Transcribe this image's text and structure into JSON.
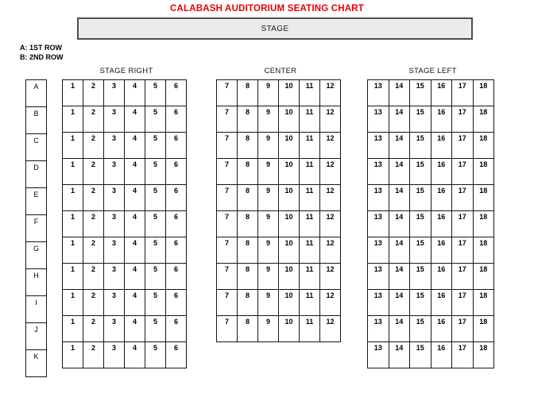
{
  "title": "CALABASH AUDITORIUM SEATING CHART",
  "stage_label": "STAGE",
  "legend": {
    "line1": "A: 1ST ROW",
    "line2": "B: 2ND ROW"
  },
  "row_labels": [
    "A",
    "B",
    "C",
    "D",
    "E",
    "F",
    "G",
    "H",
    "I",
    "J",
    "K"
  ],
  "sections": [
    {
      "id": "stage-right",
      "name": "STAGE RIGHT",
      "seat_numbers": [
        "1",
        "2",
        "3",
        "4",
        "5",
        "6"
      ],
      "rows": [
        "A",
        "B",
        "C",
        "D",
        "E",
        "F",
        "G",
        "H",
        "I",
        "J",
        "K"
      ]
    },
    {
      "id": "center",
      "name": "CENTER",
      "seat_numbers": [
        "7",
        "8",
        "9",
        "10",
        "11",
        "12"
      ],
      "rows": [
        "A",
        "B",
        "C",
        "D",
        "E",
        "F",
        "G",
        "H",
        "I",
        "J"
      ]
    },
    {
      "id": "stage-left",
      "name": "STAGE LEFT",
      "seat_numbers": [
        "13",
        "14",
        "15",
        "16",
        "17",
        "18"
      ],
      "rows": [
        "A",
        "B",
        "C",
        "D",
        "E",
        "F",
        "G",
        "H",
        "I",
        "J",
        "K"
      ]
    }
  ],
  "colors": {
    "title": "#e50000",
    "grid_border": "#161616",
    "stage_fill": "#ebebeb",
    "stage_border": "#4d4d4d"
  }
}
